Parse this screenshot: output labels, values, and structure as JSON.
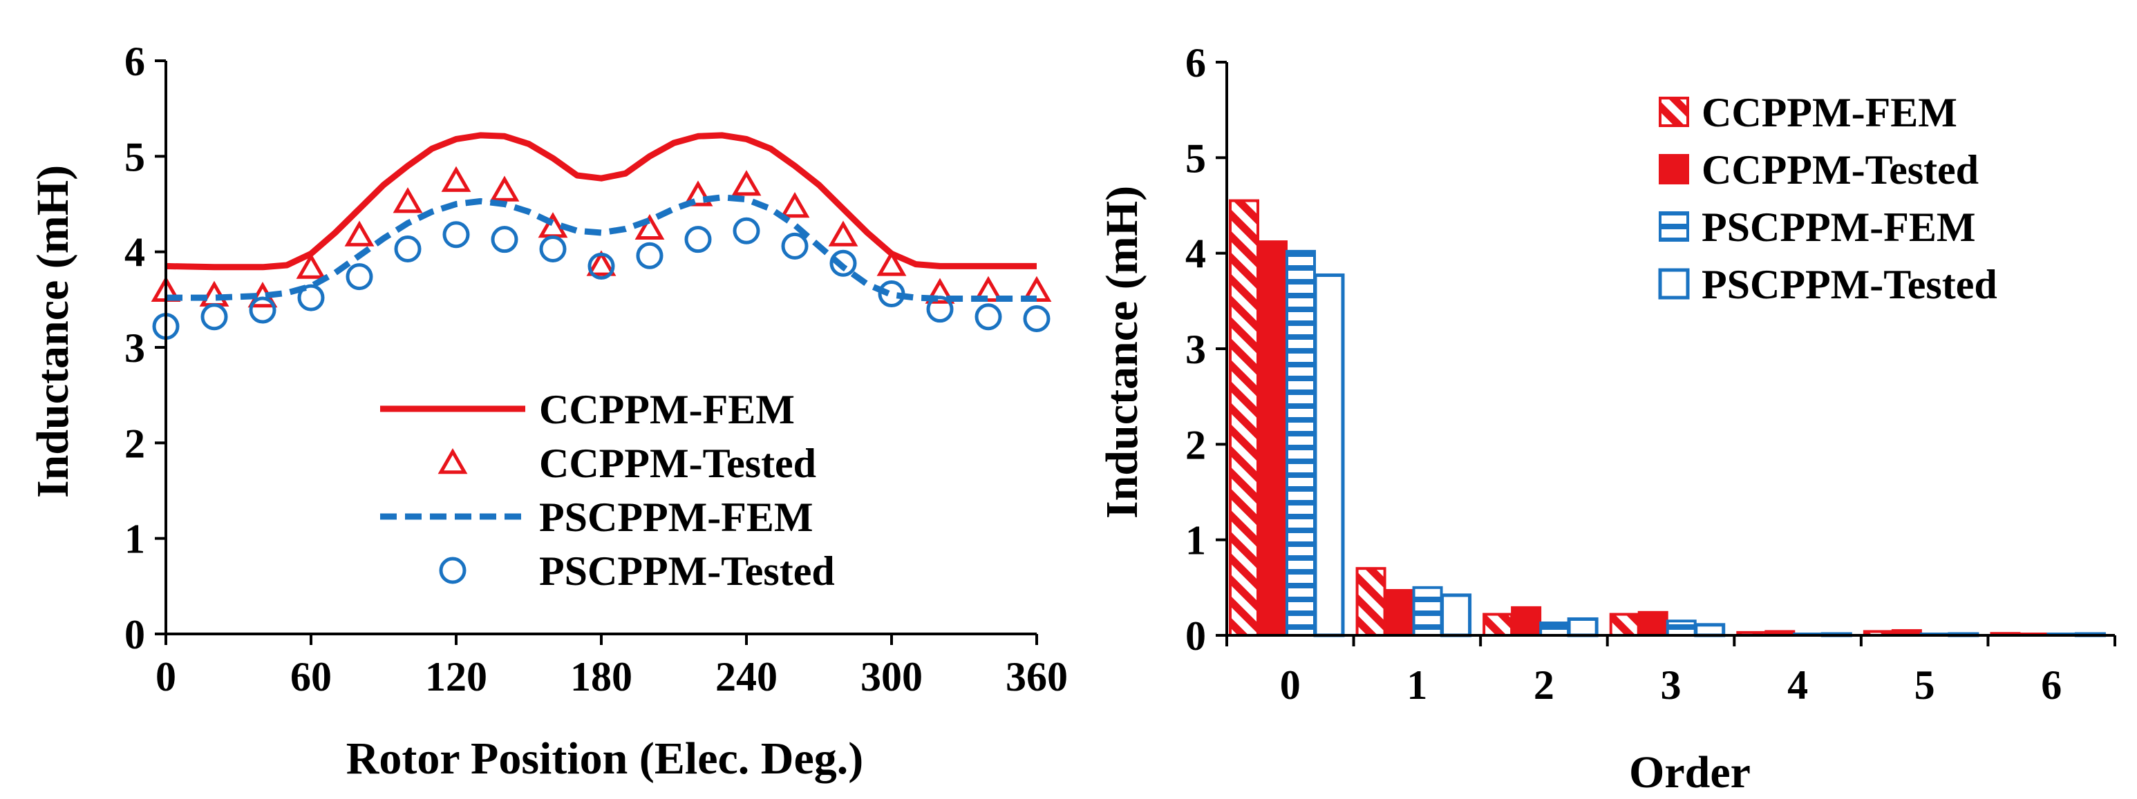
{
  "colors": {
    "red": "#e8141b",
    "blue": "#1a73c2",
    "axis": "#000000"
  },
  "chart_data": [
    {
      "type": "line",
      "title": "",
      "xlabel": "Rotor Position (Elec. Deg.)",
      "ylabel": "Inductance (mH)",
      "xlim": [
        0,
        360
      ],
      "ylim": [
        0,
        6
      ],
      "xticks": [
        "0",
        "60",
        "120",
        "180",
        "240",
        "300",
        "360"
      ],
      "yticks": [
        "0",
        "1",
        "2",
        "3",
        "4",
        "5",
        "6"
      ],
      "xtick_values": [
        0,
        60,
        120,
        180,
        240,
        300,
        360
      ],
      "ytick_values": [
        0,
        1,
        2,
        3,
        4,
        5,
        6
      ],
      "legend_position": "lower-center",
      "series": [
        {
          "name": "CCPPM-FEM",
          "style": "solid-line",
          "color": "#e8141b",
          "x": [
            0,
            20,
            40,
            50,
            60,
            70,
            80,
            90,
            100,
            110,
            120,
            130,
            140,
            150,
            160,
            170,
            180,
            190,
            200,
            210,
            220,
            230,
            240,
            250,
            260,
            270,
            280,
            290,
            300,
            310,
            320,
            340,
            360
          ],
          "y": [
            3.85,
            3.84,
            3.84,
            3.86,
            3.98,
            4.2,
            4.45,
            4.7,
            4.9,
            5.08,
            5.18,
            5.22,
            5.21,
            5.13,
            4.98,
            4.8,
            4.77,
            4.82,
            5.0,
            5.14,
            5.21,
            5.22,
            5.18,
            5.08,
            4.9,
            4.7,
            4.45,
            4.2,
            3.98,
            3.87,
            3.85,
            3.85,
            3.85
          ]
        },
        {
          "name": "CCPPM-Tested",
          "style": "triangle-markers",
          "color": "#e8141b",
          "x": [
            0,
            20,
            40,
            60,
            80,
            100,
            120,
            140,
            160,
            180,
            200,
            220,
            240,
            260,
            280,
            300,
            320,
            340,
            360
          ],
          "y": [
            3.58,
            3.53,
            3.52,
            3.82,
            4.16,
            4.51,
            4.73,
            4.63,
            4.25,
            3.85,
            4.23,
            4.58,
            4.69,
            4.46,
            4.16,
            3.85,
            3.56,
            3.58,
            3.58
          ]
        },
        {
          "name": "PSCPPM-FEM",
          "style": "dashed-line",
          "color": "#1a73c2",
          "x": [
            0,
            20,
            40,
            50,
            60,
            70,
            80,
            90,
            100,
            110,
            120,
            130,
            140,
            150,
            160,
            170,
            180,
            190,
            200,
            210,
            220,
            230,
            240,
            250,
            260,
            270,
            280,
            290,
            300,
            310,
            320,
            340,
            360
          ],
          "y": [
            3.52,
            3.52,
            3.54,
            3.57,
            3.64,
            3.78,
            3.96,
            4.14,
            4.3,
            4.42,
            4.5,
            4.53,
            4.5,
            4.42,
            4.3,
            4.22,
            4.2,
            4.24,
            4.33,
            4.45,
            4.54,
            4.57,
            4.55,
            4.45,
            4.28,
            4.06,
            3.84,
            3.66,
            3.55,
            3.52,
            3.51,
            3.51,
            3.51
          ]
        },
        {
          "name": "PSCPPM-Tested",
          "style": "circle-markers",
          "color": "#1a73c2",
          "x": [
            0,
            20,
            40,
            60,
            80,
            100,
            120,
            140,
            160,
            180,
            200,
            220,
            240,
            260,
            280,
            300,
            320,
            340,
            360
          ],
          "y": [
            3.22,
            3.32,
            3.39,
            3.52,
            3.74,
            4.03,
            4.18,
            4.13,
            4.03,
            3.85,
            3.96,
            4.13,
            4.22,
            4.06,
            3.88,
            3.56,
            3.4,
            3.32,
            3.3
          ]
        }
      ]
    },
    {
      "type": "bar",
      "title": "",
      "xlabel": "Order",
      "ylabel": "Inductance (mH)",
      "categories": [
        "0",
        "1",
        "2",
        "3",
        "4",
        "5",
        "6"
      ],
      "ylim": [
        0,
        6
      ],
      "yticks": [
        "0",
        "1",
        "2",
        "3",
        "4",
        "5",
        "6"
      ],
      "ytick_values": [
        0,
        1,
        2,
        3,
        4,
        5,
        6
      ],
      "legend_position": "top-right",
      "series": [
        {
          "name": "CCPPM-FEM",
          "style": "red-hatched",
          "color": "#e8141b",
          "values": [
            4.55,
            0.7,
            0.22,
            0.22,
            0.03,
            0.04,
            0.02
          ]
        },
        {
          "name": "CCPPM-Tested",
          "style": "red-solid",
          "color": "#e8141b",
          "values": [
            4.12,
            0.47,
            0.29,
            0.24,
            0.04,
            0.05,
            0.01
          ]
        },
        {
          "name": "PSCPPM-FEM",
          "style": "blue-striped",
          "color": "#1a73c2",
          "values": [
            4.02,
            0.5,
            0.13,
            0.15,
            0.01,
            0.01,
            0.01
          ]
        },
        {
          "name": "PSCPPM-Tested",
          "style": "blue-outline",
          "color": "#1a73c2",
          "values": [
            3.77,
            0.42,
            0.17,
            0.11,
            0.01,
            0.01,
            0.01
          ]
        }
      ]
    }
  ]
}
